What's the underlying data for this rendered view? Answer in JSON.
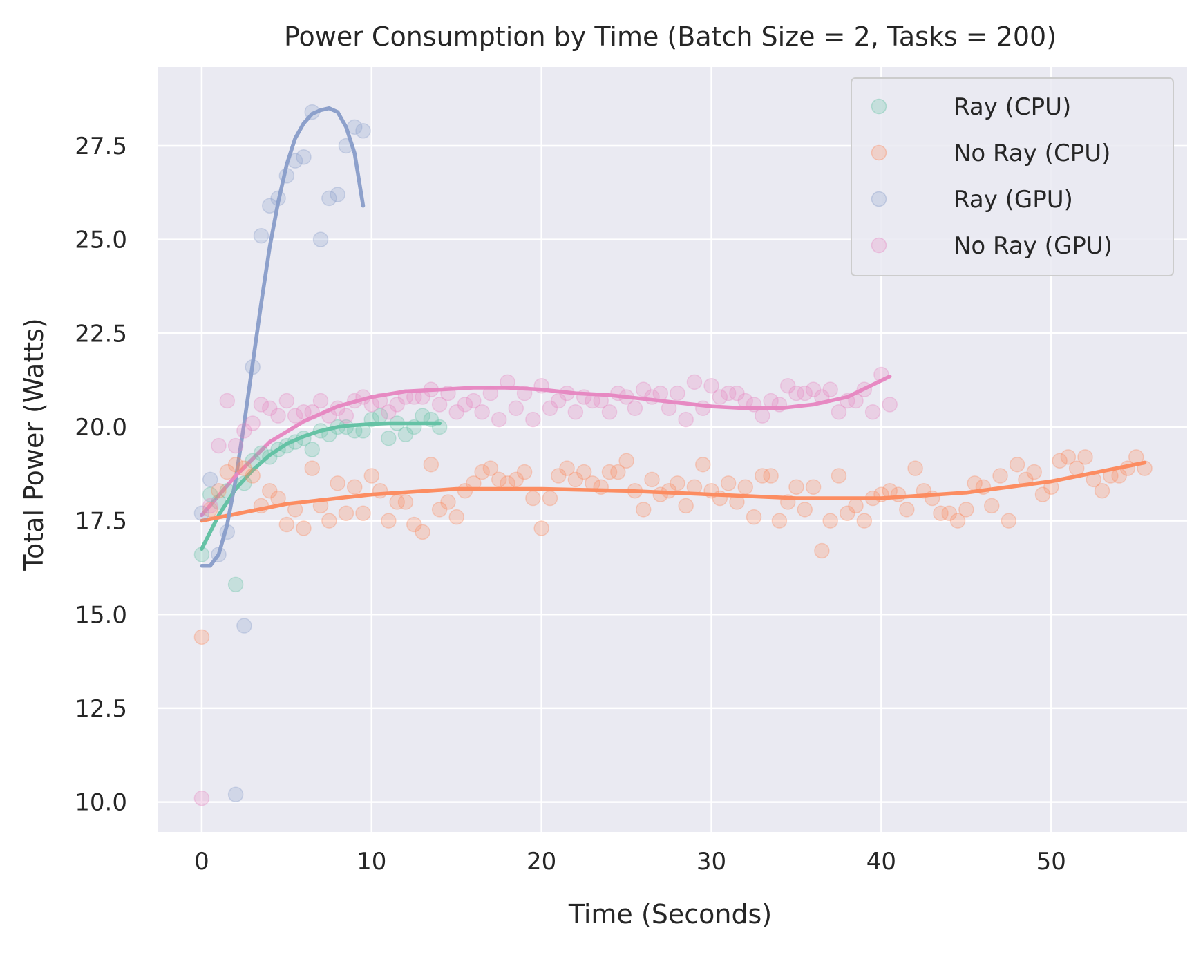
{
  "chart_data": {
    "type": "scatter",
    "title": "Power Consumption by Time (Batch Size = 2, Tasks = 200)",
    "xlabel": "Time (Seconds)",
    "ylabel": "Total Power (Watts)",
    "xlim": [
      -2.6,
      58
    ],
    "ylim": [
      9.2,
      29.6
    ],
    "xticks": [
      0,
      10,
      20,
      30,
      40,
      50
    ],
    "yticks": [
      10.0,
      12.5,
      15.0,
      17.5,
      20.0,
      22.5,
      25.0,
      27.5
    ],
    "xtick_labels": [
      "0",
      "10",
      "20",
      "30",
      "40",
      "50"
    ],
    "ytick_labels": [
      "10.0",
      "12.5",
      "15.0",
      "17.5",
      "20.0",
      "22.5",
      "25.0",
      "27.5"
    ],
    "grid": true,
    "background": "#eaeaf2",
    "legend_position": "top-right",
    "legend": [
      "Ray (CPU)",
      "No Ray (CPU)",
      "Ray (GPU)",
      "No Ray (GPU)"
    ],
    "series": [
      {
        "name": "Ray (CPU)",
        "color": "#66c2a5",
        "points": [
          [
            0,
            16.6
          ],
          [
            0.5,
            18.2
          ],
          [
            1,
            18.0
          ],
          [
            1.5,
            18.3
          ],
          [
            2,
            15.8
          ],
          [
            2.5,
            18.5
          ],
          [
            3,
            19.1
          ],
          [
            3.5,
            19.3
          ],
          [
            4,
            19.2
          ],
          [
            4.5,
            19.4
          ],
          [
            5,
            19.5
          ],
          [
            5.5,
            19.6
          ],
          [
            6,
            19.7
          ],
          [
            6.5,
            19.4
          ],
          [
            7,
            19.9
          ],
          [
            7.5,
            19.8
          ],
          [
            8,
            20.0
          ],
          [
            8.5,
            20.0
          ],
          [
            9,
            19.9
          ],
          [
            9.5,
            19.9
          ],
          [
            10,
            20.2
          ],
          [
            10.5,
            20.3
          ],
          [
            11,
            19.7
          ],
          [
            11.5,
            20.1
          ],
          [
            12,
            19.8
          ],
          [
            12.5,
            20.0
          ],
          [
            13,
            20.3
          ],
          [
            13.5,
            20.2
          ],
          [
            14,
            20.0
          ]
        ],
        "fit": [
          [
            0,
            16.75
          ],
          [
            1,
            17.65
          ],
          [
            2,
            18.35
          ],
          [
            3,
            18.85
          ],
          [
            4,
            19.25
          ],
          [
            5,
            19.55
          ],
          [
            6,
            19.75
          ],
          [
            7,
            19.9
          ],
          [
            8,
            20.0
          ],
          [
            9,
            20.05
          ],
          [
            10,
            20.08
          ],
          [
            11,
            20.1
          ],
          [
            12,
            20.1
          ],
          [
            13,
            20.1
          ],
          [
            14,
            20.1
          ]
        ]
      },
      {
        "name": "No Ray (CPU)",
        "color": "#fc8d62",
        "points": [
          [
            0,
            14.4
          ],
          [
            0.5,
            17.8
          ],
          [
            1,
            18.3
          ],
          [
            1.5,
            18.8
          ],
          [
            2,
            19.0
          ],
          [
            2.5,
            18.9
          ],
          [
            3,
            18.7
          ],
          [
            3.5,
            17.9
          ],
          [
            4,
            18.3
          ],
          [
            4.5,
            18.1
          ],
          [
            5,
            17.4
          ],
          [
            5.5,
            17.8
          ],
          [
            6,
            17.3
          ],
          [
            6.5,
            18.9
          ],
          [
            7,
            17.9
          ],
          [
            7.5,
            17.5
          ],
          [
            8,
            18.5
          ],
          [
            8.5,
            17.7
          ],
          [
            9,
            18.4
          ],
          [
            9.5,
            17.7
          ],
          [
            10,
            18.7
          ],
          [
            10.5,
            18.3
          ],
          [
            11,
            17.5
          ],
          [
            11.5,
            18.0
          ],
          [
            12,
            18.0
          ],
          [
            12.5,
            17.4
          ],
          [
            13,
            17.2
          ],
          [
            13.5,
            19.0
          ],
          [
            14,
            17.8
          ],
          [
            14.5,
            18.0
          ],
          [
            15,
            17.6
          ],
          [
            15.5,
            18.3
          ],
          [
            16,
            18.5
          ],
          [
            16.5,
            18.8
          ],
          [
            17,
            18.9
          ],
          [
            17.5,
            18.6
          ],
          [
            18,
            18.5
          ],
          [
            18.5,
            18.6
          ],
          [
            19,
            18.8
          ],
          [
            19.5,
            18.1
          ],
          [
            20,
            17.3
          ],
          [
            20.5,
            18.1
          ],
          [
            21,
            18.7
          ],
          [
            21.5,
            18.9
          ],
          [
            22,
            18.6
          ],
          [
            22.5,
            18.8
          ],
          [
            23,
            18.5
          ],
          [
            23.5,
            18.4
          ],
          [
            24,
            18.8
          ],
          [
            24.5,
            18.8
          ],
          [
            25,
            19.1
          ],
          [
            25.5,
            18.3
          ],
          [
            26,
            17.8
          ],
          [
            26.5,
            18.6
          ],
          [
            27,
            18.2
          ],
          [
            27.5,
            18.3
          ],
          [
            28,
            18.5
          ],
          [
            28.5,
            17.9
          ],
          [
            29,
            18.4
          ],
          [
            29.5,
            19.0
          ],
          [
            30,
            18.3
          ],
          [
            30.5,
            18.1
          ],
          [
            31,
            18.5
          ],
          [
            31.5,
            18.0
          ],
          [
            32,
            18.4
          ],
          [
            32.5,
            17.6
          ],
          [
            33,
            18.7
          ],
          [
            33.5,
            18.7
          ],
          [
            34,
            17.5
          ],
          [
            34.5,
            18.0
          ],
          [
            35,
            18.4
          ],
          [
            35.5,
            17.8
          ],
          [
            36,
            18.4
          ],
          [
            36.5,
            16.7
          ],
          [
            37,
            17.5
          ],
          [
            37.5,
            18.7
          ],
          [
            38,
            17.7
          ],
          [
            38.5,
            17.9
          ],
          [
            39,
            17.5
          ],
          [
            39.5,
            18.1
          ],
          [
            40,
            18.2
          ],
          [
            40.5,
            18.3
          ],
          [
            41,
            18.2
          ],
          [
            41.5,
            17.8
          ],
          [
            42,
            18.9
          ],
          [
            42.5,
            18.3
          ],
          [
            43,
            18.1
          ],
          [
            43.5,
            17.7
          ],
          [
            44,
            17.7
          ],
          [
            44.5,
            17.5
          ],
          [
            45,
            17.8
          ],
          [
            45.5,
            18.5
          ],
          [
            46,
            18.4
          ],
          [
            46.5,
            17.9
          ],
          [
            47,
            18.7
          ],
          [
            47.5,
            17.5
          ],
          [
            48,
            19.0
          ],
          [
            48.5,
            18.6
          ],
          [
            49,
            18.8
          ],
          [
            49.5,
            18.2
          ],
          [
            50,
            18.4
          ],
          [
            50.5,
            19.1
          ],
          [
            51,
            19.2
          ],
          [
            51.5,
            18.9
          ],
          [
            52,
            19.2
          ],
          [
            52.5,
            18.6
          ],
          [
            53,
            18.3
          ],
          [
            53.5,
            18.7
          ],
          [
            54,
            18.7
          ],
          [
            54.5,
            18.9
          ],
          [
            55,
            19.2
          ],
          [
            55.5,
            18.9
          ]
        ],
        "fit": [
          [
            0,
            17.5
          ],
          [
            5,
            17.95
          ],
          [
            10,
            18.2
          ],
          [
            15,
            18.35
          ],
          [
            20,
            18.35
          ],
          [
            25,
            18.3
          ],
          [
            30,
            18.2
          ],
          [
            35,
            18.1
          ],
          [
            40,
            18.1
          ],
          [
            45,
            18.25
          ],
          [
            50,
            18.55
          ],
          [
            55.5,
            19.05
          ]
        ]
      },
      {
        "name": "Ray (GPU)",
        "color": "#8da0cb",
        "points": [
          [
            0,
            17.7
          ],
          [
            0.5,
            18.6
          ],
          [
            1,
            16.6
          ],
          [
            1.5,
            17.2
          ],
          [
            2,
            10.2
          ],
          [
            2.5,
            14.7
          ],
          [
            3,
            21.6
          ],
          [
            3.5,
            25.1
          ],
          [
            4,
            25.9
          ],
          [
            4.5,
            26.1
          ],
          [
            5,
            26.7
          ],
          [
            5.5,
            27.1
          ],
          [
            6,
            27.2
          ],
          [
            6.5,
            28.4
          ],
          [
            7,
            25.0
          ],
          [
            7.5,
            26.1
          ],
          [
            8,
            26.2
          ],
          [
            8.5,
            27.5
          ],
          [
            9,
            28.0
          ],
          [
            9.5,
            27.9
          ]
        ],
        "fit": [
          [
            0,
            16.3
          ],
          [
            0.5,
            16.3
          ],
          [
            1,
            16.6
          ],
          [
            1.5,
            17.4
          ],
          [
            2,
            18.6
          ],
          [
            2.5,
            20.1
          ],
          [
            3,
            21.7
          ],
          [
            3.5,
            23.3
          ],
          [
            4,
            24.8
          ],
          [
            4.5,
            26.0
          ],
          [
            5,
            27.0
          ],
          [
            5.5,
            27.7
          ],
          [
            6,
            28.1
          ],
          [
            6.5,
            28.35
          ],
          [
            7,
            28.45
          ],
          [
            7.5,
            28.5
          ],
          [
            8,
            28.4
          ],
          [
            8.5,
            28.0
          ],
          [
            9,
            27.3
          ],
          [
            9.5,
            25.9
          ]
        ]
      },
      {
        "name": "No Ray (GPU)",
        "color": "#e78ac3",
        "points": [
          [
            0,
            10.1
          ],
          [
            0.5,
            17.9
          ],
          [
            1,
            19.5
          ],
          [
            1.5,
            20.7
          ],
          [
            2,
            19.5
          ],
          [
            2.5,
            19.9
          ],
          [
            3,
            20.1
          ],
          [
            3.5,
            20.6
          ],
          [
            4,
            20.5
          ],
          [
            4.5,
            20.3
          ],
          [
            5,
            20.7
          ],
          [
            5.5,
            20.3
          ],
          [
            6,
            20.4
          ],
          [
            6.5,
            20.4
          ],
          [
            7,
            20.7
          ],
          [
            7.5,
            20.3
          ],
          [
            8,
            20.5
          ],
          [
            8.5,
            20.3
          ],
          [
            9,
            20.7
          ],
          [
            9.5,
            20.8
          ],
          [
            10,
            20.6
          ],
          [
            10.5,
            20.7
          ],
          [
            11,
            20.4
          ],
          [
            11.5,
            20.6
          ],
          [
            12,
            20.8
          ],
          [
            12.5,
            20.8
          ],
          [
            13,
            20.8
          ],
          [
            13.5,
            21.0
          ],
          [
            14,
            20.6
          ],
          [
            14.5,
            20.9
          ],
          [
            15,
            20.4
          ],
          [
            15.5,
            20.6
          ],
          [
            16,
            20.7
          ],
          [
            16.5,
            20.4
          ],
          [
            17,
            20.9
          ],
          [
            17.5,
            20.2
          ],
          [
            18,
            21.2
          ],
          [
            18.5,
            20.5
          ],
          [
            19,
            20.9
          ],
          [
            19.5,
            20.2
          ],
          [
            20,
            21.1
          ],
          [
            20.5,
            20.5
          ],
          [
            21,
            20.7
          ],
          [
            21.5,
            20.9
          ],
          [
            22,
            20.4
          ],
          [
            22.5,
            20.8
          ],
          [
            23,
            20.7
          ],
          [
            23.5,
            20.7
          ],
          [
            24,
            20.4
          ],
          [
            24.5,
            20.9
          ],
          [
            25,
            20.8
          ],
          [
            25.5,
            20.5
          ],
          [
            26,
            21.0
          ],
          [
            26.5,
            20.8
          ],
          [
            27,
            20.9
          ],
          [
            27.5,
            20.5
          ],
          [
            28,
            20.9
          ],
          [
            28.5,
            20.2
          ],
          [
            29,
            21.2
          ],
          [
            29.5,
            20.5
          ],
          [
            30,
            21.1
          ],
          [
            30.5,
            20.8
          ],
          [
            31,
            20.9
          ],
          [
            31.5,
            20.9
          ],
          [
            32,
            20.7
          ],
          [
            32.5,
            20.6
          ],
          [
            33,
            20.3
          ],
          [
            33.5,
            20.7
          ],
          [
            34,
            20.6
          ],
          [
            34.5,
            21.1
          ],
          [
            35,
            20.9
          ],
          [
            35.5,
            20.9
          ],
          [
            36,
            21.0
          ],
          [
            36.5,
            20.8
          ],
          [
            37,
            21.0
          ],
          [
            37.5,
            20.4
          ],
          [
            38,
            20.7
          ],
          [
            38.5,
            20.7
          ],
          [
            39,
            21.0
          ],
          [
            39.5,
            20.4
          ],
          [
            40,
            21.4
          ],
          [
            40.5,
            20.6
          ]
        ],
        "fit": [
          [
            0,
            17.65
          ],
          [
            2,
            18.7
          ],
          [
            4,
            19.6
          ],
          [
            6,
            20.15
          ],
          [
            8,
            20.55
          ],
          [
            10,
            20.8
          ],
          [
            12,
            20.95
          ],
          [
            14,
            21.0
          ],
          [
            16,
            21.05
          ],
          [
            18,
            21.05
          ],
          [
            20,
            21.0
          ],
          [
            22,
            20.9
          ],
          [
            24,
            20.85
          ],
          [
            26,
            20.75
          ],
          [
            28,
            20.65
          ],
          [
            30,
            20.55
          ],
          [
            32,
            20.5
          ],
          [
            34,
            20.5
          ],
          [
            36,
            20.6
          ],
          [
            38,
            20.8
          ],
          [
            40.5,
            21.35
          ]
        ]
      }
    ]
  }
}
